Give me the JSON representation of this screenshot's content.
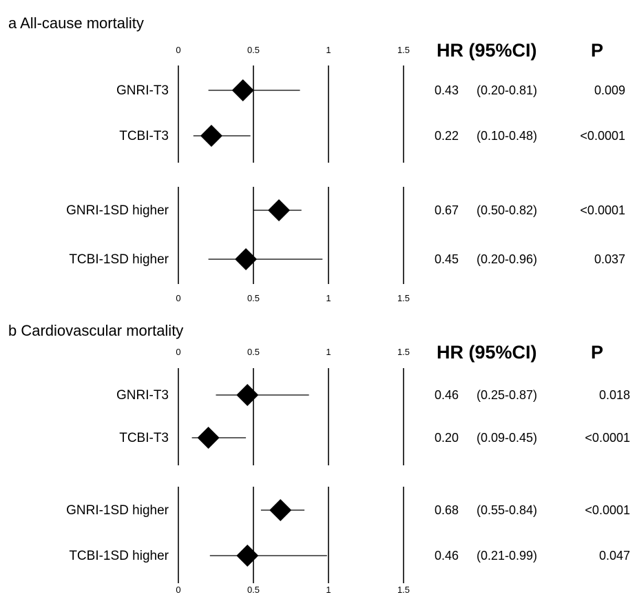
{
  "chart_data": [
    {
      "type": "forest",
      "title": "a All-cause mortality",
      "tick_labels": [
        "0",
        "0.5",
        "1",
        "1.5"
      ],
      "xlim": [
        0,
        1.5
      ],
      "header": {
        "hr": "HR (95%CI)",
        "p": "P"
      },
      "groups": [
        {
          "rows": [
            {
              "label": "GNRI-T3",
              "hr": 0.43,
              "lo": 0.2,
              "hi": 0.81,
              "hr_text": "0.43",
              "ci_text": "(0.20-0.81)",
              "p_text": "0.009"
            },
            {
              "label": "TCBI-T3",
              "hr": 0.22,
              "lo": 0.1,
              "hi": 0.48,
              "hr_text": "0.22",
              "ci_text": "(0.10-0.48)",
              "p_text": "<0.0001"
            }
          ]
        },
        {
          "rows": [
            {
              "label": "GNRI-1SD higher",
              "hr": 0.67,
              "lo": 0.5,
              "hi": 0.82,
              "hr_text": "0.67",
              "ci_text": "(0.50-0.82)",
              "p_text": "<0.0001"
            },
            {
              "label": "TCBI-1SD higher",
              "hr": 0.45,
              "lo": 0.2,
              "hi": 0.96,
              "hr_text": "0.45",
              "ci_text": "(0.20-0.96)",
              "p_text": "0.037"
            }
          ]
        }
      ]
    },
    {
      "type": "forest",
      "title": "b Cardiovascular mortality",
      "tick_labels": [
        "0",
        "0.5",
        "1",
        "1.5"
      ],
      "xlim": [
        0,
        1.5
      ],
      "header": {
        "hr": "HR (95%CI)",
        "p": "P"
      },
      "groups": [
        {
          "rows": [
            {
              "label": "GNRI-T3",
              "hr": 0.46,
              "lo": 0.25,
              "hi": 0.87,
              "hr_text": "0.46",
              "ci_text": "(0.25-0.87)",
              "p_text": "0.018"
            },
            {
              "label": "TCBI-T3",
              "hr": 0.2,
              "lo": 0.09,
              "hi": 0.45,
              "hr_text": "0.20",
              "ci_text": "(0.09-0.45)",
              "p_text": "<0.0001"
            }
          ]
        },
        {
          "rows": [
            {
              "label": "GNRI-1SD higher",
              "hr": 0.68,
              "lo": 0.55,
              "hi": 0.84,
              "hr_text": "0.68",
              "ci_text": "(0.55-0.84)",
              "p_text": "<0.0001"
            },
            {
              "label": "TCBI-1SD higher",
              "hr": 0.46,
              "lo": 0.21,
              "hi": 0.99,
              "hr_text": "0.46",
              "ci_text": "(0.21-0.99)",
              "p_text": "0.047"
            }
          ]
        }
      ]
    }
  ]
}
